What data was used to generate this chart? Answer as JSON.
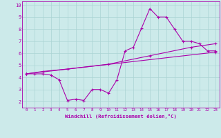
{
  "xlabel": "Windchill (Refroidissement éolien,°C)",
  "bg_color": "#cceaea",
  "grid_color": "#aad4d4",
  "line_color": "#aa00aa",
  "xlim": [
    -0.5,
    23.5
  ],
  "ylim": [
    1.5,
    10.3
  ],
  "xticks": [
    0,
    1,
    2,
    3,
    4,
    5,
    6,
    7,
    8,
    9,
    10,
    11,
    12,
    13,
    14,
    15,
    16,
    17,
    18,
    19,
    20,
    21,
    22,
    23
  ],
  "yticks": [
    2,
    3,
    4,
    5,
    6,
    7,
    8,
    9,
    10
  ],
  "curve1_x": [
    0,
    1,
    2,
    3,
    4,
    5,
    6,
    7,
    8,
    9,
    10,
    11,
    12,
    13,
    14,
    15,
    16,
    17,
    18,
    19,
    20,
    21,
    22,
    23
  ],
  "curve1_y": [
    4.3,
    4.3,
    4.3,
    4.2,
    3.8,
    2.1,
    2.2,
    2.1,
    3.0,
    3.0,
    2.7,
    3.8,
    6.2,
    6.5,
    8.1,
    9.7,
    9.0,
    9.0,
    8.0,
    7.0,
    7.0,
    6.8,
    6.2,
    6.2
  ],
  "curve2_x": [
    0,
    23
  ],
  "curve2_y": [
    4.3,
    6.1
  ],
  "curve3_x": [
    0,
    2,
    5,
    10,
    15,
    20,
    23
  ],
  "curve3_y": [
    4.3,
    4.5,
    4.7,
    5.1,
    5.8,
    6.5,
    6.8
  ]
}
